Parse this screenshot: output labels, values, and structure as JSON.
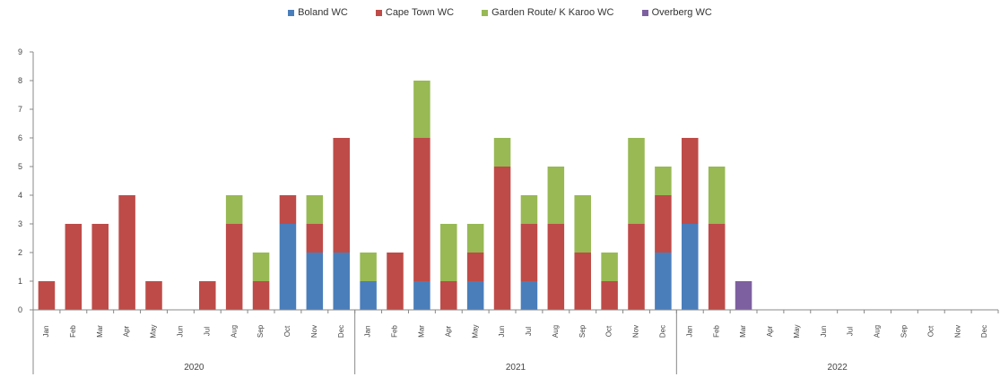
{
  "chart_data": {
    "type": "bar",
    "stacked": true,
    "title": "",
    "xlabel": "",
    "ylabel": "",
    "ylim": [
      0,
      9
    ],
    "yticks": [
      "0",
      "1",
      "2",
      "3",
      "4",
      "5",
      "6",
      "7",
      "8",
      "9"
    ],
    "grid": false,
    "legend_position": "top",
    "categories": [
      "Jan",
      "Feb",
      "Mar",
      "Apr",
      "May",
      "Jun",
      "Jul",
      "Aug",
      "Sep",
      "Oct",
      "Nov",
      "Dec",
      "Jan",
      "Feb",
      "Mar",
      "Apr",
      "May",
      "Jun",
      "Jul",
      "Aug",
      "Sep",
      "Oct",
      "Nov",
      "Dec",
      "Jan",
      "Feb",
      "Mar",
      "Apr",
      "May",
      "Jun",
      "Jul",
      "Aug",
      "Sep",
      "Oct",
      "Nov",
      "Dec"
    ],
    "groups": [
      {
        "label": "2020",
        "start": 0,
        "end": 11
      },
      {
        "label": "2021",
        "start": 12,
        "end": 23
      },
      {
        "label": "2022",
        "start": 24,
        "end": 35
      }
    ],
    "series": [
      {
        "name": "Boland WC",
        "color": "#4a7ebb",
        "values": [
          0,
          0,
          0,
          0,
          0,
          0,
          0,
          0,
          0,
          3,
          2,
          2,
          1,
          0,
          1,
          0,
          1,
          0,
          1,
          0,
          0,
          0,
          0,
          2,
          3,
          0,
          0,
          0,
          0,
          0,
          0,
          0,
          0,
          0,
          0,
          0
        ]
      },
      {
        "name": "Cape Town WC",
        "color": "#be4b48",
        "values": [
          1,
          3,
          3,
          4,
          1,
          0,
          1,
          3,
          1,
          1,
          1,
          4,
          0,
          2,
          5,
          1,
          1,
          5,
          2,
          3,
          2,
          1,
          3,
          2,
          3,
          3,
          0,
          0,
          0,
          0,
          0,
          0,
          0,
          0,
          0,
          0
        ]
      },
      {
        "name": "Garden Route/ K Karoo WC",
        "color": "#98b954",
        "values": [
          0,
          0,
          0,
          0,
          0,
          0,
          0,
          1,
          1,
          0,
          1,
          0,
          1,
          0,
          2,
          2,
          1,
          1,
          1,
          2,
          2,
          1,
          3,
          1,
          0,
          2,
          0,
          0,
          0,
          0,
          0,
          0,
          0,
          0,
          0,
          0
        ]
      },
      {
        "name": "Overberg WC",
        "color": "#7d60a0",
        "values": [
          0,
          0,
          0,
          0,
          0,
          0,
          0,
          0,
          0,
          0,
          0,
          0,
          0,
          0,
          0,
          0,
          0,
          0,
          0,
          0,
          0,
          0,
          0,
          0,
          0,
          0,
          1,
          0,
          0,
          0,
          0,
          0,
          0,
          0,
          0,
          0
        ]
      }
    ]
  }
}
